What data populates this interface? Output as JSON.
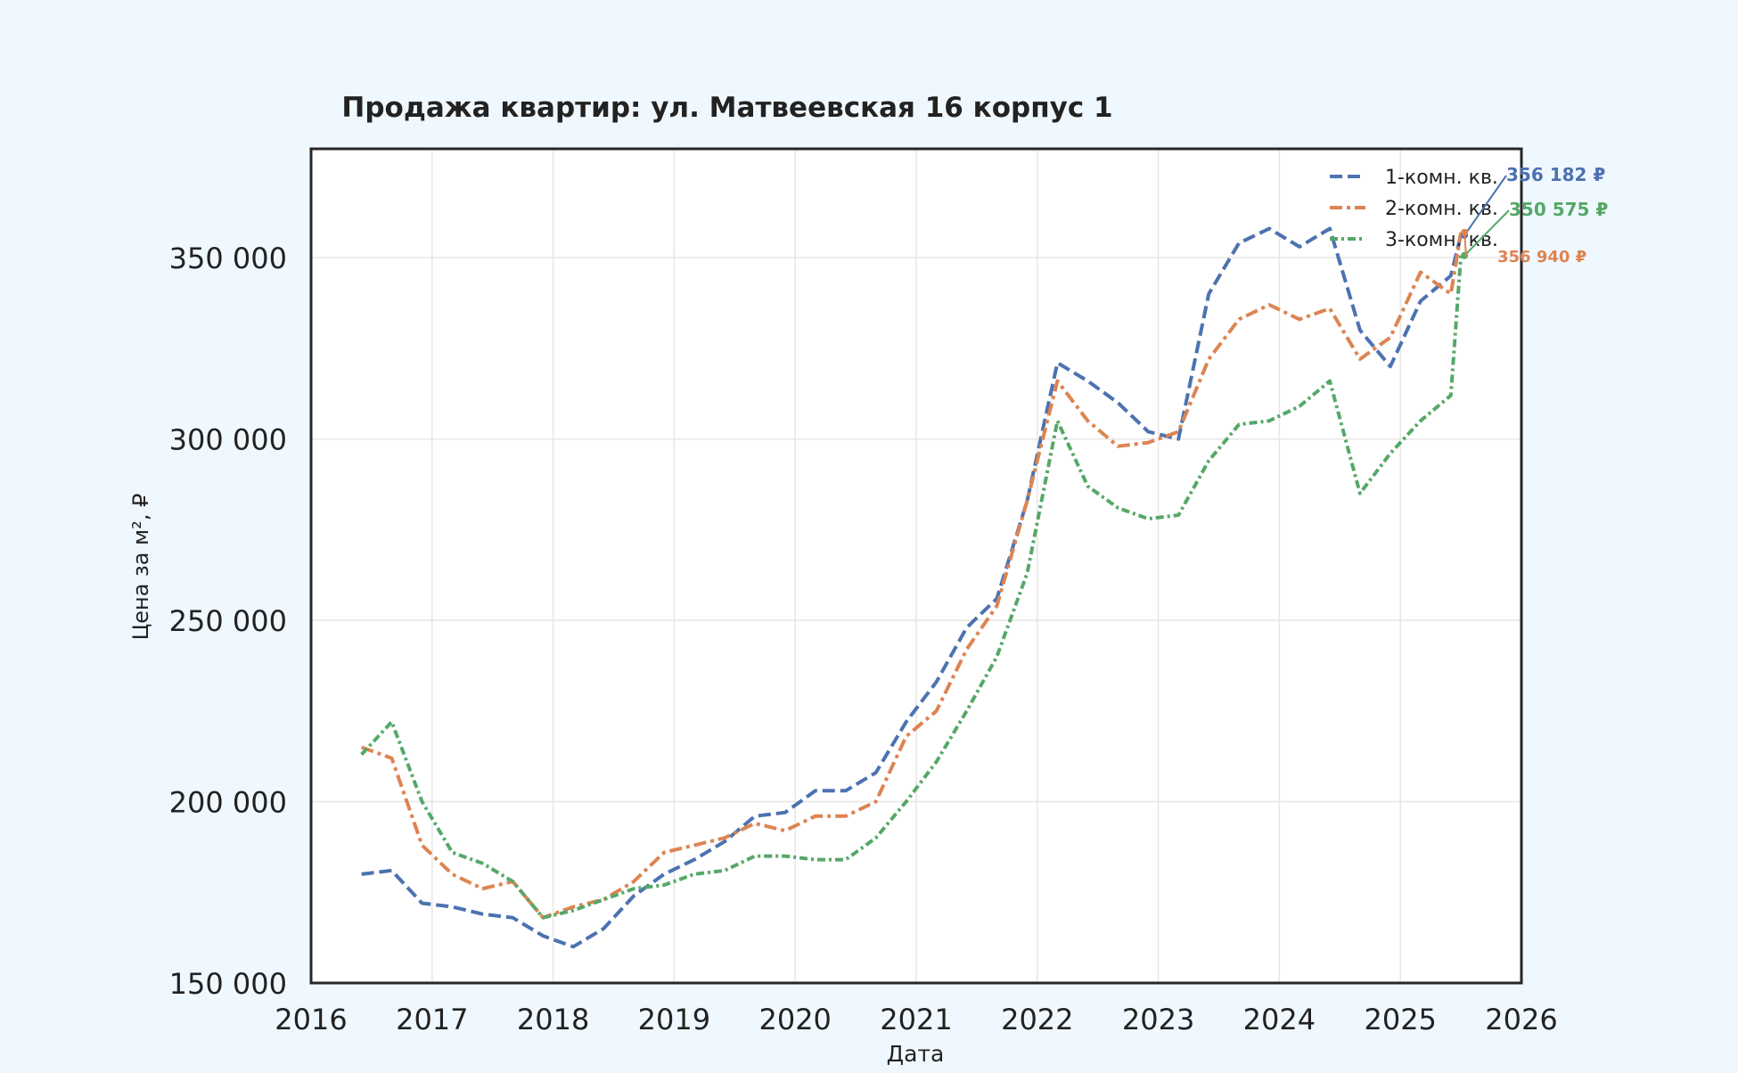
{
  "chart_data": {
    "type": "line",
    "title": "Продажа квартир: ул. Матвеевская 16 корпус 1",
    "xlabel": "Дата",
    "ylabel": "Цена за м², ₽",
    "xlim": [
      "2016-01-01",
      "2026-01-01"
    ],
    "ylim": [
      150000,
      380000
    ],
    "x_ticks": [
      "2016",
      "2017",
      "2018",
      "2019",
      "2020",
      "2021",
      "2022",
      "2023",
      "2024",
      "2025",
      "2026"
    ],
    "y_ticks": [
      150000,
      200000,
      250000,
      300000,
      350000
    ],
    "y_tick_labels": [
      "150 000",
      "200 000",
      "250 000",
      "300 000",
      "350 000"
    ],
    "grid": true,
    "legend_position": "top-right",
    "background_color": "#f0f8ff",
    "plot_background_color": "#ffffff",
    "series": [
      {
        "name": "1-комн. кв.",
        "color": "#4c72b0",
        "style": "dashed",
        "x": [
          "2016-06",
          "2016-09",
          "2016-12",
          "2017-03",
          "2017-06",
          "2017-09",
          "2017-12",
          "2018-03",
          "2018-06",
          "2018-09",
          "2018-12",
          "2019-03",
          "2019-06",
          "2019-09",
          "2019-12",
          "2020-03",
          "2020-06",
          "2020-09",
          "2020-12",
          "2021-03",
          "2021-06",
          "2021-09",
          "2021-12",
          "2022-03",
          "2022-06",
          "2022-09",
          "2022-12",
          "2023-03",
          "2023-06",
          "2023-09",
          "2023-12",
          "2024-03",
          "2024-06",
          "2024-09",
          "2024-12",
          "2025-03",
          "2025-06",
          "2025-07"
        ],
        "values": [
          180000,
          181000,
          172000,
          171000,
          169000,
          168000,
          163000,
          160000,
          165000,
          174000,
          180000,
          184000,
          189000,
          196000,
          197000,
          203000,
          203000,
          208000,
          222000,
          233000,
          248000,
          256000,
          283000,
          321000,
          316000,
          310000,
          302000,
          300000,
          340000,
          354000,
          358000,
          353000,
          358000,
          330000,
          320000,
          338000,
          345000,
          356182
        ]
      },
      {
        "name": "2-комн. кв.",
        "color": "#dd8452",
        "style": "dashdot",
        "x": [
          "2016-06",
          "2016-09",
          "2016-12",
          "2017-03",
          "2017-06",
          "2017-09",
          "2017-12",
          "2018-03",
          "2018-06",
          "2018-09",
          "2018-12",
          "2019-03",
          "2019-06",
          "2019-09",
          "2019-12",
          "2020-03",
          "2020-06",
          "2020-09",
          "2020-12",
          "2021-03",
          "2021-06",
          "2021-09",
          "2021-12",
          "2022-03",
          "2022-06",
          "2022-09",
          "2022-12",
          "2023-03",
          "2023-06",
          "2023-09",
          "2023-12",
          "2024-03",
          "2024-06",
          "2024-09",
          "2024-12",
          "2025-03",
          "2025-06",
          "2025-07"
        ],
        "values": [
          215000,
          212000,
          188000,
          180000,
          176000,
          178000,
          168000,
          171000,
          173000,
          178000,
          186000,
          188000,
          190000,
          194000,
          192000,
          196000,
          196000,
          200000,
          218000,
          225000,
          242000,
          254000,
          283000,
          316000,
          305000,
          298000,
          299000,
          302000,
          322000,
          333000,
          337000,
          333000,
          336000,
          322000,
          328000,
          346000,
          340000,
          356940
        ]
      },
      {
        "name": "3-комн. кв.",
        "color": "#55a868",
        "style": "dashdot-dense",
        "x": [
          "2016-06",
          "2016-09",
          "2016-12",
          "2017-03",
          "2017-06",
          "2017-09",
          "2017-12",
          "2018-03",
          "2018-06",
          "2018-09",
          "2018-12",
          "2019-03",
          "2019-06",
          "2019-09",
          "2019-12",
          "2020-03",
          "2020-06",
          "2020-09",
          "2020-12",
          "2021-03",
          "2021-06",
          "2021-09",
          "2021-12",
          "2022-03",
          "2022-06",
          "2022-09",
          "2022-12",
          "2023-03",
          "2023-06",
          "2023-09",
          "2023-12",
          "2024-03",
          "2024-06",
          "2024-09",
          "2024-12",
          "2025-03",
          "2025-06",
          "2025-07"
        ],
        "values": [
          213000,
          222000,
          200000,
          186000,
          183000,
          178000,
          168000,
          170000,
          173000,
          176000,
          177000,
          180000,
          181000,
          185000,
          185000,
          184000,
          184000,
          190000,
          200000,
          211000,
          225000,
          240000,
          263000,
          305000,
          287000,
          281000,
          278000,
          279000,
          294000,
          304000,
          305000,
          309000,
          316000,
          285000,
          296000,
          305000,
          312000,
          350575
        ]
      }
    ],
    "annotations": [
      {
        "series": "1-комн. кв.",
        "text": "356 182 ₽",
        "color": "#4c72b0"
      },
      {
        "series": "3-комн. кв.",
        "text": "350 575 ₽",
        "color": "#55a868"
      },
      {
        "series": "2-комн. кв.",
        "text": "356 940 ₽",
        "color": "#dd8452"
      }
    ]
  }
}
